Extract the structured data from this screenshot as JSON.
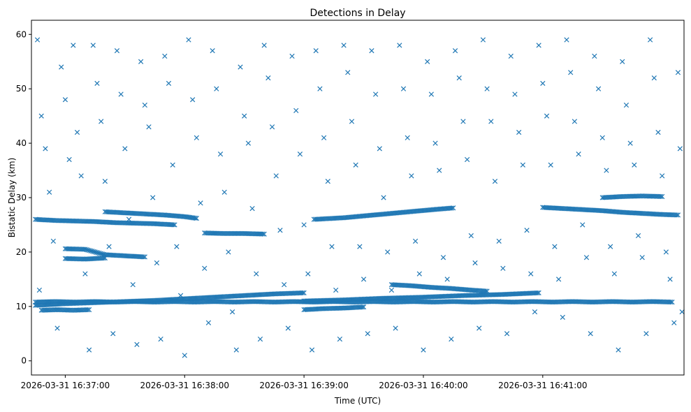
{
  "chart_data": {
    "type": "scatter",
    "title": "Detections in Delay",
    "xlabel": "Time (UTC)",
    "ylabel": "Bistatic Delay (km)",
    "x_unit": "seconds after 2026-03-31 16:36:00",
    "xlim": [
      43,
      371
    ],
    "ylim": [
      -2.6,
      62.6
    ],
    "x_ticks": [
      {
        "value": 60,
        "label": "2026-03-31 16:37:00"
      },
      {
        "value": 120,
        "label": "2026-03-31 16:38:00"
      },
      {
        "value": 180,
        "label": "2026-03-31 16:39:00"
      },
      {
        "value": 240,
        "label": "2026-03-31 16:40:00"
      },
      {
        "value": 300,
        "label": "2026-03-31 16:41:00"
      }
    ],
    "y_ticks": [
      {
        "value": 0,
        "label": "0"
      },
      {
        "value": 10,
        "label": "10"
      },
      {
        "value": 20,
        "label": "20"
      },
      {
        "value": 30,
        "label": "30"
      },
      {
        "value": 40,
        "label": "40"
      },
      {
        "value": 50,
        "label": "50"
      },
      {
        "value": 60,
        "label": "60"
      }
    ],
    "marker": "x",
    "color": "#1f77b4",
    "tracks": [
      {
        "name": "track-10.8-flat",
        "points": [
          [
            45,
            10.8
          ],
          [
            55,
            10.9
          ],
          [
            65,
            10.8
          ],
          [
            75,
            10.9
          ],
          [
            85,
            10.8
          ],
          [
            95,
            10.9
          ],
          [
            105,
            10.8
          ],
          [
            115,
            10.9
          ],
          [
            125,
            10.8
          ],
          [
            135,
            10.9
          ],
          [
            145,
            10.8
          ],
          [
            155,
            10.9
          ],
          [
            165,
            10.8
          ],
          [
            175,
            10.9
          ],
          [
            185,
            10.8
          ],
          [
            195,
            10.9
          ],
          [
            205,
            10.8
          ],
          [
            215,
            10.9
          ],
          [
            225,
            10.8
          ],
          [
            235,
            10.9
          ],
          [
            245,
            10.8
          ],
          [
            255,
            10.9
          ],
          [
            265,
            10.8
          ],
          [
            275,
            10.9
          ],
          [
            285,
            10.8
          ],
          [
            295,
            10.9
          ],
          [
            305,
            10.8
          ],
          [
            315,
            10.9
          ],
          [
            325,
            10.8
          ],
          [
            335,
            10.9
          ],
          [
            345,
            10.8
          ],
          [
            355,
            10.9
          ],
          [
            365,
            10.8
          ]
        ]
      },
      {
        "name": "track-rising-10-12.5",
        "points": [
          [
            45,
            10.2
          ],
          [
            60,
            10.5
          ],
          [
            75,
            10.7
          ],
          [
            90,
            10.9
          ],
          [
            105,
            11.1
          ],
          [
            120,
            11.4
          ],
          [
            135,
            11.7
          ],
          [
            150,
            12.0
          ],
          [
            165,
            12.3
          ],
          [
            180,
            12.5
          ]
        ]
      },
      {
        "name": "track-rising-11-12.5-late",
        "points": [
          [
            180,
            11.0
          ],
          [
            200,
            11.2
          ],
          [
            220,
            11.5
          ],
          [
            240,
            11.7
          ],
          [
            260,
            12.0
          ],
          [
            280,
            12.2
          ],
          [
            298,
            12.5
          ]
        ]
      },
      {
        "name": "track-descending-14-12.8",
        "points": [
          [
            224,
            14.0
          ],
          [
            234,
            13.8
          ],
          [
            244,
            13.5
          ],
          [
            254,
            13.3
          ],
          [
            264,
            13.0
          ],
          [
            272,
            12.8
          ]
        ]
      },
      {
        "name": "track-9.3-early",
        "points": [
          [
            48,
            9.3
          ],
          [
            56,
            9.4
          ],
          [
            64,
            9.3
          ],
          [
            72,
            9.4
          ]
        ]
      },
      {
        "name": "track-25.8-descending",
        "points": [
          [
            45,
            26.0
          ],
          [
            55,
            25.8
          ],
          [
            65,
            25.7
          ],
          [
            75,
            25.6
          ],
          [
            85,
            25.4
          ],
          [
            95,
            25.3
          ],
          [
            105,
            25.2
          ],
          [
            115,
            25.0
          ]
        ]
      },
      {
        "name": "track-27.3-descending",
        "points": [
          [
            80,
            27.4
          ],
          [
            90,
            27.2
          ],
          [
            100,
            27.0
          ],
          [
            110,
            26.8
          ],
          [
            120,
            26.5
          ],
          [
            126,
            26.2
          ]
        ]
      },
      {
        "name": "track-23.4",
        "points": [
          [
            130,
            23.5
          ],
          [
            140,
            23.4
          ],
          [
            150,
            23.4
          ],
          [
            160,
            23.3
          ]
        ]
      },
      {
        "name": "track-20.5-19.2",
        "points": [
          [
            60,
            20.6
          ],
          [
            70,
            20.5
          ],
          [
            80,
            19.5
          ],
          [
            90,
            19.3
          ],
          [
            100,
            19.1
          ]
        ]
      },
      {
        "name": "track-rising-26-28",
        "points": [
          [
            185,
            26.0
          ],
          [
            200,
            26.3
          ],
          [
            215,
            26.8
          ],
          [
            230,
            27.3
          ],
          [
            245,
            27.8
          ],
          [
            255,
            28.1
          ]
        ]
      },
      {
        "name": "track-30.2",
        "points": [
          [
            330,
            30.0
          ],
          [
            340,
            30.2
          ],
          [
            350,
            30.3
          ],
          [
            360,
            30.2
          ]
        ]
      },
      {
        "name": "track-27.8-descending",
        "points": [
          [
            300,
            28.2
          ],
          [
            310,
            28.0
          ],
          [
            320,
            27.8
          ],
          [
            330,
            27.6
          ],
          [
            340,
            27.3
          ],
          [
            350,
            27.1
          ],
          [
            360,
            26.9
          ],
          [
            368,
            26.8
          ]
        ]
      },
      {
        "name": "track-18.8",
        "points": [
          [
            60,
            18.8
          ],
          [
            70,
            18.7
          ],
          [
            80,
            18.9
          ]
        ]
      },
      {
        "name": "track-9.5-mid",
        "points": [
          [
            180,
            9.4
          ],
          [
            190,
            9.6
          ],
          [
            200,
            9.7
          ],
          [
            210,
            9.9
          ]
        ]
      }
    ],
    "clutter": [
      [
        46,
        59
      ],
      [
        48,
        45
      ],
      [
        50,
        39
      ],
      [
        52,
        31
      ],
      [
        54,
        22
      ],
      [
        47,
        13
      ],
      [
        56,
        6
      ],
      [
        58,
        54
      ],
      [
        60,
        48
      ],
      [
        62,
        37
      ],
      [
        64,
        58
      ],
      [
        66,
        42
      ],
      [
        68,
        34
      ],
      [
        70,
        16
      ],
      [
        72,
        2
      ],
      [
        74,
        58
      ],
      [
        76,
        51
      ],
      [
        78,
        44
      ],
      [
        80,
        33
      ],
      [
        82,
        21
      ],
      [
        84,
        5
      ],
      [
        86,
        57
      ],
      [
        88,
        49
      ],
      [
        90,
        39
      ],
      [
        92,
        26
      ],
      [
        94,
        14
      ],
      [
        96,
        3
      ],
      [
        98,
        55
      ],
      [
        100,
        47
      ],
      [
        102,
        43
      ],
      [
        104,
        30
      ],
      [
        106,
        18
      ],
      [
        108,
        4
      ],
      [
        110,
        56
      ],
      [
        112,
        51
      ],
      [
        114,
        36
      ],
      [
        116,
        21
      ],
      [
        118,
        12
      ],
      [
        120,
        1
      ],
      [
        122,
        59
      ],
      [
        124,
        48
      ],
      [
        126,
        41
      ],
      [
        128,
        29
      ],
      [
        130,
        17
      ],
      [
        132,
        7
      ],
      [
        134,
        57
      ],
      [
        136,
        50
      ],
      [
        138,
        38
      ],
      [
        140,
        31
      ],
      [
        142,
        20
      ],
      [
        144,
        9
      ],
      [
        146,
        2
      ],
      [
        148,
        54
      ],
      [
        150,
        45
      ],
      [
        152,
        40
      ],
      [
        154,
        28
      ],
      [
        156,
        16
      ],
      [
        158,
        4
      ],
      [
        160,
        58
      ],
      [
        162,
        52
      ],
      [
        164,
        43
      ],
      [
        166,
        34
      ],
      [
        168,
        24
      ],
      [
        170,
        14
      ],
      [
        172,
        6
      ],
      [
        174,
        56
      ],
      [
        176,
        46
      ],
      [
        178,
        38
      ],
      [
        180,
        25
      ],
      [
        182,
        16
      ],
      [
        184,
        2
      ],
      [
        186,
        57
      ],
      [
        188,
        50
      ],
      [
        190,
        41
      ],
      [
        192,
        33
      ],
      [
        194,
        21
      ],
      [
        196,
        13
      ],
      [
        198,
        4
      ],
      [
        200,
        58
      ],
      [
        202,
        53
      ],
      [
        204,
        44
      ],
      [
        206,
        36
      ],
      [
        208,
        21
      ],
      [
        210,
        15
      ],
      [
        212,
        5
      ],
      [
        214,
        57
      ],
      [
        216,
        49
      ],
      [
        218,
        39
      ],
      [
        220,
        30
      ],
      [
        222,
        20
      ],
      [
        224,
        13
      ],
      [
        226,
        6
      ],
      [
        228,
        58
      ],
      [
        230,
        50
      ],
      [
        232,
        41
      ],
      [
        234,
        34
      ],
      [
        236,
        22
      ],
      [
        238,
        16
      ],
      [
        240,
        2
      ],
      [
        242,
        55
      ],
      [
        244,
        49
      ],
      [
        246,
        40
      ],
      [
        248,
        35
      ],
      [
        250,
        19
      ],
      [
        252,
        15
      ],
      [
        254,
        4
      ],
      [
        256,
        57
      ],
      [
        258,
        52
      ],
      [
        260,
        44
      ],
      [
        262,
        37
      ],
      [
        264,
        23
      ],
      [
        266,
        18
      ],
      [
        268,
        6
      ],
      [
        270,
        59
      ],
      [
        272,
        50
      ],
      [
        274,
        44
      ],
      [
        276,
        33
      ],
      [
        278,
        22
      ],
      [
        280,
        17
      ],
      [
        282,
        5
      ],
      [
        284,
        56
      ],
      [
        286,
        49
      ],
      [
        288,
        42
      ],
      [
        290,
        36
      ],
      [
        292,
        24
      ],
      [
        294,
        16
      ],
      [
        296,
        9
      ],
      [
        298,
        58
      ],
      [
        300,
        51
      ],
      [
        302,
        45
      ],
      [
        304,
        36
      ],
      [
        306,
        21
      ],
      [
        308,
        15
      ],
      [
        310,
        8
      ],
      [
        312,
        59
      ],
      [
        314,
        53
      ],
      [
        316,
        44
      ],
      [
        318,
        38
      ],
      [
        320,
        25
      ],
      [
        322,
        19
      ],
      [
        324,
        5
      ],
      [
        326,
        56
      ],
      [
        328,
        50
      ],
      [
        330,
        41
      ],
      [
        332,
        35
      ],
      [
        334,
        21
      ],
      [
        336,
        16
      ],
      [
        338,
        2
      ],
      [
        340,
        55
      ],
      [
        342,
        47
      ],
      [
        344,
        40
      ],
      [
        346,
        36
      ],
      [
        348,
        23
      ],
      [
        350,
        19
      ],
      [
        352,
        5
      ],
      [
        354,
        59
      ],
      [
        356,
        52
      ],
      [
        358,
        42
      ],
      [
        360,
        34
      ],
      [
        362,
        20
      ],
      [
        364,
        15
      ],
      [
        366,
        7
      ],
      [
        368,
        53
      ],
      [
        369,
        39
      ],
      [
        370,
        9
      ]
    ]
  }
}
